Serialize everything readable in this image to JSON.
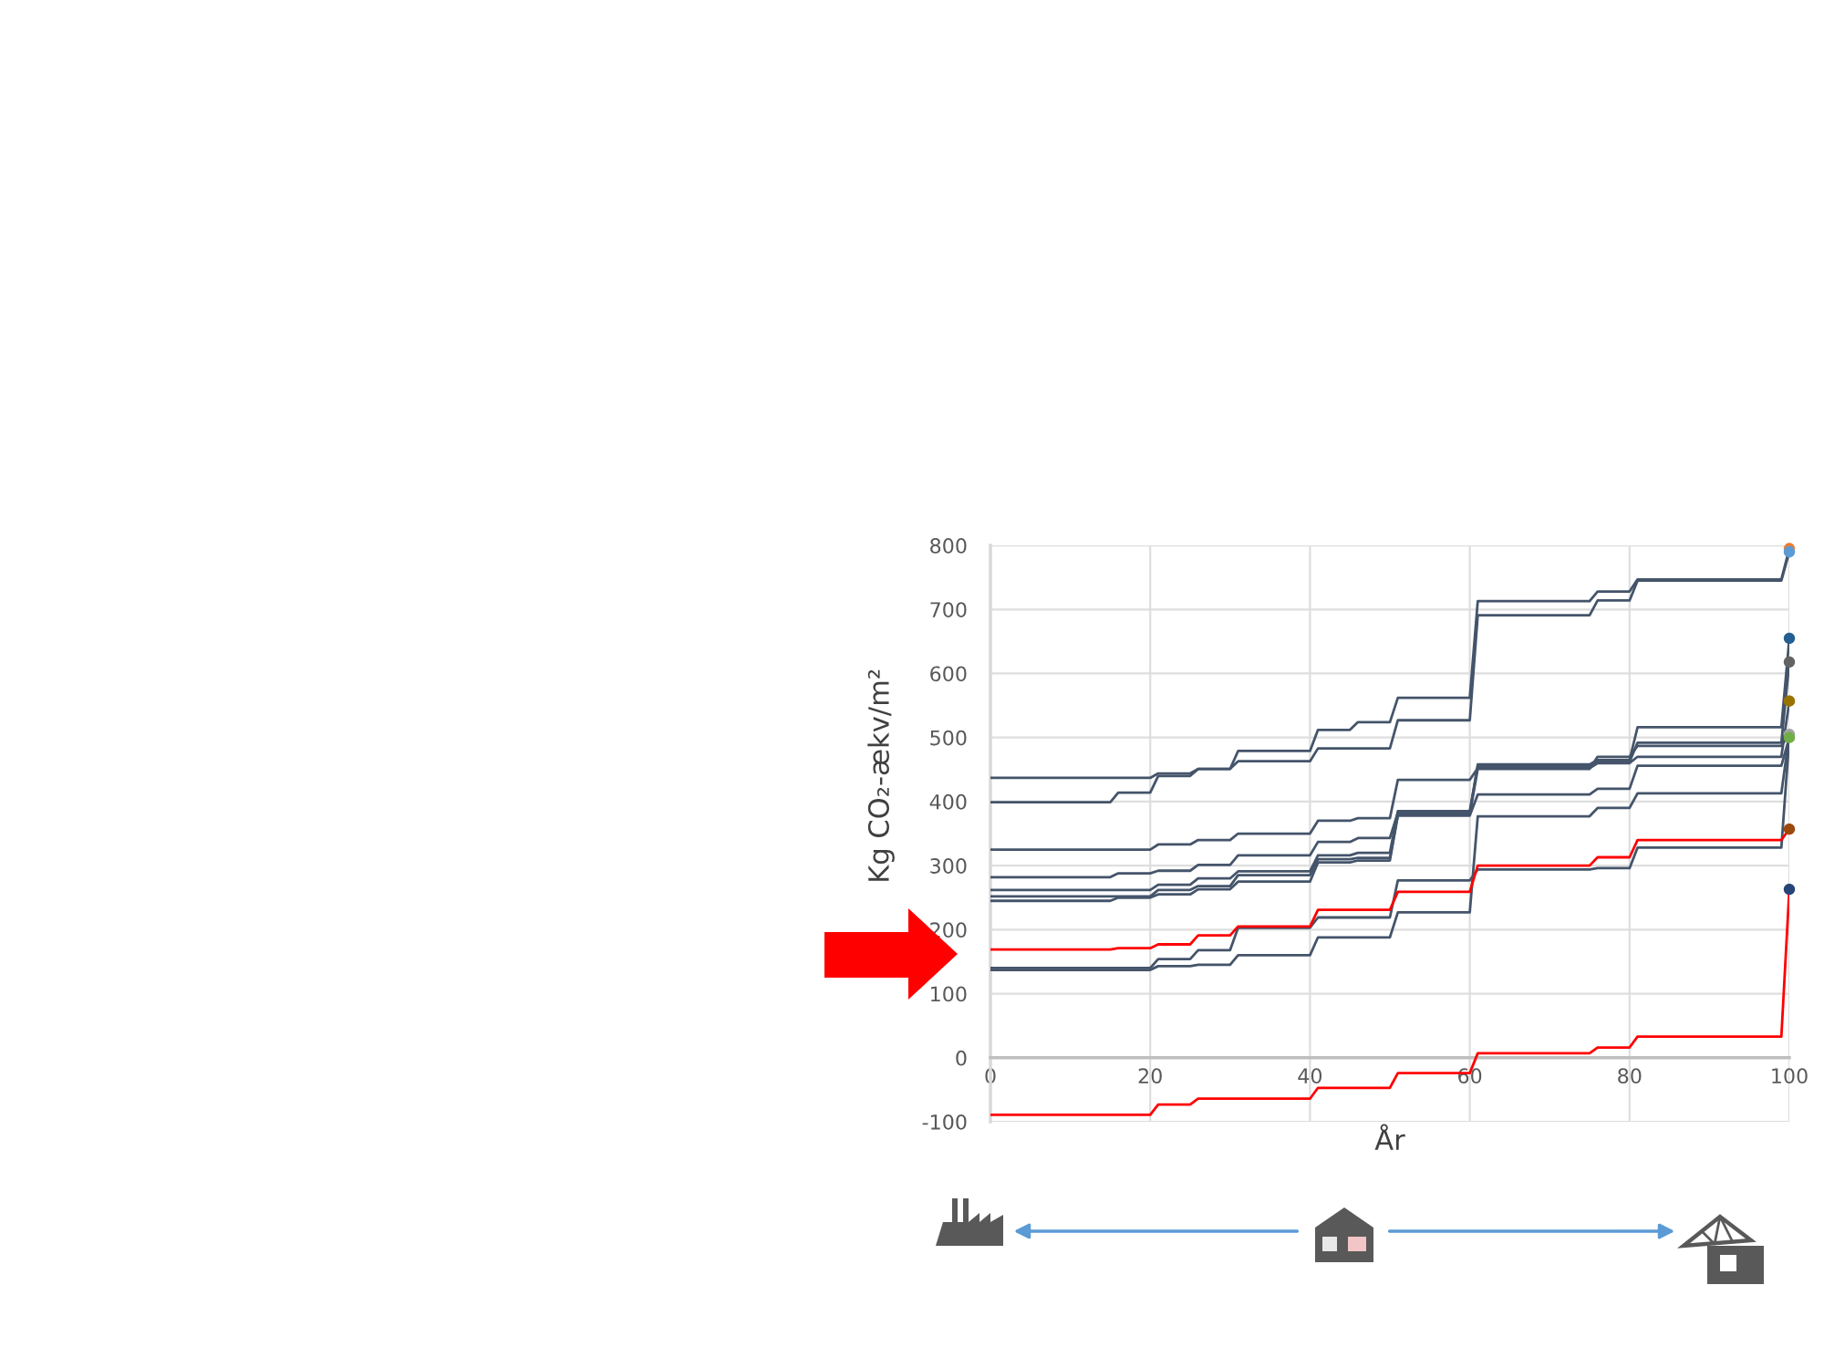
{
  "chart_data": {
    "type": "line",
    "xlabel": "År",
    "ylabel": "Kg CO₂-ækv/m²",
    "x": [
      0,
      15,
      16,
      20,
      21,
      25,
      26,
      30,
      31,
      40,
      41,
      45,
      46,
      50,
      51,
      60,
      61,
      75,
      76,
      80,
      81,
      99,
      100
    ],
    "xlim": [
      0,
      100
    ],
    "xticks": [
      0,
      20,
      40,
      60,
      80,
      100
    ],
    "ylim": [
      -100,
      800
    ],
    "yticks": [
      -100,
      0,
      100,
      200,
      300,
      400,
      500,
      600,
      700,
      800
    ],
    "grid": true,
    "series": [
      {
        "color": "#44546a",
        "values": [
          437,
          437,
          437,
          437,
          444,
          444,
          451,
          451,
          479,
          479,
          512,
          512,
          524,
          524,
          562,
          562,
          713,
          713,
          728,
          728,
          747,
          747,
          795
        ]
      },
      {
        "color": "#44546a",
        "values": [
          399,
          399,
          414,
          414,
          440,
          440,
          451,
          451,
          463,
          463,
          483,
          483,
          483,
          483,
          527,
          527,
          691,
          691,
          714,
          714,
          745,
          745,
          790
        ]
      },
      {
        "color": "#44546a",
        "values": [
          325,
          325,
          325,
          325,
          333,
          333,
          340,
          340,
          350,
          350,
          370,
          370,
          374,
          374,
          434,
          434,
          452,
          452,
          460,
          460,
          470,
          470,
          557
        ]
      },
      {
        "color": "#44546a",
        "values": [
          282,
          282,
          288,
          288,
          292,
          292,
          301,
          301,
          316,
          316,
          337,
          337,
          343,
          343,
          383,
          383,
          458,
          458,
          465,
          465,
          516,
          516,
          655
        ]
      },
      {
        "color": "#44546a",
        "values": [
          262,
          262,
          262,
          262,
          270,
          270,
          280,
          280,
          291,
          291,
          316,
          316,
          320,
          320,
          385,
          385,
          455,
          455,
          462,
          462,
          492,
          492,
          618
        ]
      },
      {
        "color": "#44546a",
        "values": [
          252,
          252,
          252,
          252,
          262,
          262,
          268,
          268,
          285,
          285,
          310,
          310,
          312,
          312,
          380,
          380,
          451,
          451,
          470,
          470,
          487,
          487,
          505
        ]
      },
      {
        "color": "#44546a",
        "values": [
          245,
          245,
          250,
          250,
          255,
          255,
          263,
          263,
          275,
          275,
          305,
          305,
          308,
          308,
          378,
          378,
          411,
          411,
          420,
          420,
          456,
          456,
          500
        ]
      },
      {
        "color": "#44546a",
        "values": [
          140,
          140,
          140,
          140,
          154,
          154,
          168,
          168,
          203,
          203,
          219,
          219,
          219,
          219,
          277,
          277,
          294,
          294,
          296,
          296,
          328,
          328,
          500
        ]
      },
      {
        "color": "#44546a",
        "values": [
          137,
          137,
          137,
          137,
          143,
          143,
          145,
          145,
          160,
          160,
          188,
          188,
          188,
          188,
          227,
          227,
          377,
          377,
          390,
          390,
          413,
          413,
          505
        ]
      },
      {
        "color": "#ff0000",
        "values": [
          169,
          169,
          171,
          171,
          177,
          177,
          191,
          191,
          205,
          205,
          231,
          231,
          231,
          231,
          259,
          259,
          300,
          300,
          313,
          313,
          340,
          340,
          357
        ]
      },
      {
        "color": "#ff0000",
        "values": [
          -89,
          -89,
          -89,
          -89,
          -73,
          -73,
          -64,
          -64,
          -64,
          -64,
          -47,
          -47,
          -47,
          -47,
          -24,
          -24,
          7,
          7,
          16,
          16,
          33,
          33,
          263
        ]
      },
      {
        "type": "scatter",
        "marker": "circle",
        "color": "#ed7d31",
        "values": [
          null,
          null,
          null,
          null,
          null,
          null,
          null,
          null,
          null,
          null,
          null,
          null,
          null,
          null,
          null,
          null,
          null,
          null,
          null,
          null,
          null,
          null,
          795
        ]
      },
      {
        "type": "scatter",
        "marker": "circle",
        "color": "#5b9bd5",
        "values": [
          null,
          null,
          null,
          null,
          null,
          null,
          null,
          null,
          null,
          null,
          null,
          null,
          null,
          null,
          null,
          null,
          null,
          null,
          null,
          null,
          null,
          null,
          790
        ]
      },
      {
        "type": "scatter",
        "marker": "circle",
        "color": "#255e91",
        "values": [
          null,
          null,
          null,
          null,
          null,
          null,
          null,
          null,
          null,
          null,
          null,
          null,
          null,
          null,
          null,
          null,
          null,
          null,
          null,
          null,
          null,
          null,
          655
        ]
      },
      {
        "type": "scatter",
        "marker": "circle",
        "color": "#636363",
        "values": [
          null,
          null,
          null,
          null,
          null,
          null,
          null,
          null,
          null,
          null,
          null,
          null,
          null,
          null,
          null,
          null,
          null,
          null,
          null,
          null,
          null,
          null,
          618
        ]
      },
      {
        "type": "scatter",
        "marker": "circle",
        "color": "#997300",
        "values": [
          null,
          null,
          null,
          null,
          null,
          null,
          null,
          null,
          null,
          null,
          null,
          null,
          null,
          null,
          null,
          null,
          null,
          null,
          null,
          null,
          null,
          null,
          557
        ]
      },
      {
        "type": "scatter",
        "marker": "circle",
        "color": "#a5a5a5",
        "values": [
          null,
          null,
          null,
          null,
          null,
          null,
          null,
          null,
          null,
          null,
          null,
          null,
          null,
          null,
          null,
          null,
          null,
          null,
          null,
          null,
          null,
          null,
          505
        ]
      },
      {
        "type": "scatter",
        "marker": "circle",
        "color": "#70ad47",
        "values": [
          null,
          null,
          null,
          null,
          null,
          null,
          null,
          null,
          null,
          null,
          null,
          null,
          null,
          null,
          null,
          null,
          null,
          null,
          null,
          null,
          null,
          null,
          500
        ]
      },
      {
        "type": "scatter",
        "marker": "circle",
        "color": "#9e480e",
        "values": [
          null,
          null,
          null,
          null,
          null,
          null,
          null,
          null,
          null,
          null,
          null,
          null,
          null,
          null,
          null,
          null,
          null,
          null,
          null,
          null,
          null,
          null,
          357
        ]
      },
      {
        "type": "scatter",
        "marker": "circle",
        "color": "#264478",
        "values": [
          null,
          null,
          null,
          null,
          null,
          null,
          null,
          null,
          null,
          null,
          null,
          null,
          null,
          null,
          null,
          null,
          null,
          null,
          null,
          null,
          null,
          null,
          263
        ]
      }
    ]
  }
}
